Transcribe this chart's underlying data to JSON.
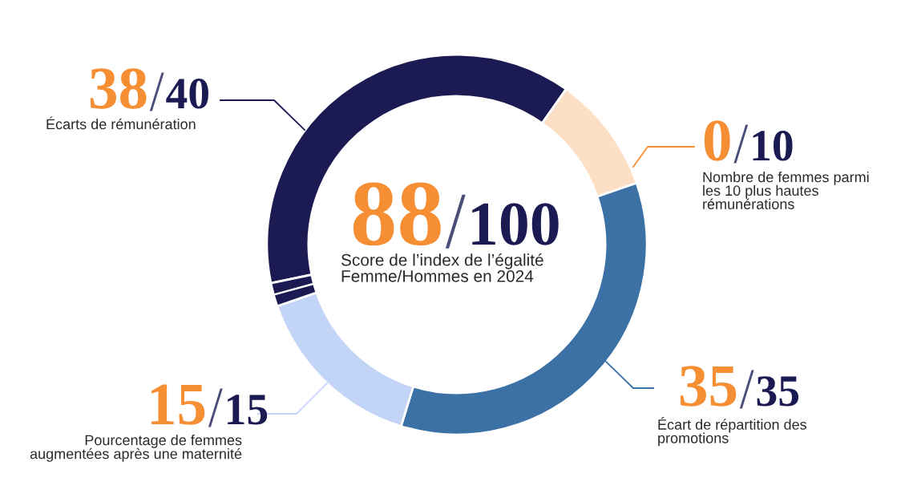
{
  "chart_data": {
    "type": "donut",
    "title": "Score de l’index de l’égalité\nFemme/Hommes en 2024",
    "annotations": [
      "88/100",
      "0/10",
      "Nombre de femmes parmi\nles 10 plus hautes\nrémunérations"
    ],
    "categories": [
      "Écarts de rémunération",
      null,
      "Écart de répartition des\npromotions",
      "Pourcentage de femmes\naugmentées après une maternité",
      null
    ],
    "values": [
      38,
      10,
      35,
      15,
      2
    ],
    "colors": [
      "#1c1a52",
      "#fddfc5",
      "#3c71a5",
      "#c3d5f6",
      "#1c1a52"
    ],
    "value_labels": [
      "38/40",
      null,
      "35/35",
      "15/15",
      null
    ]
  }
}
